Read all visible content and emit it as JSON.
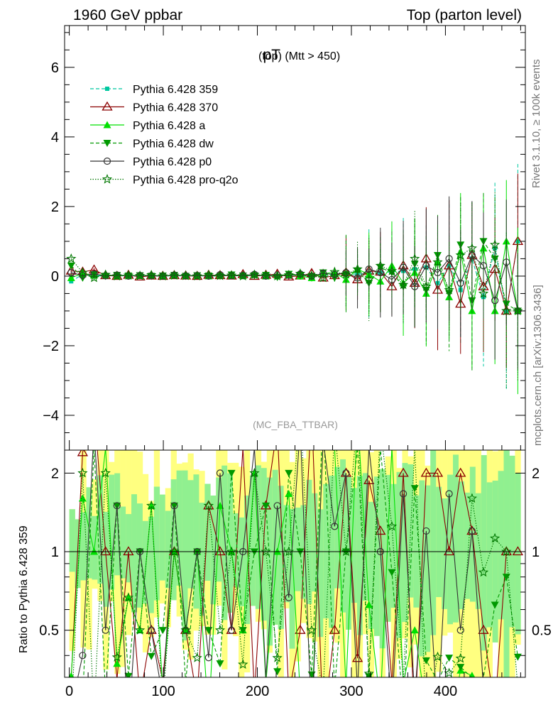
{
  "header": {
    "left": "1960 GeV ppbar",
    "right": "Top (parton level)"
  },
  "title": {
    "main": "pT",
    "sub": "(top) (Mtt > 450)"
  },
  "watermark": "(MC_FBA_TTBAR)",
  "side_labels": {
    "rivet": "Rivet 3.1.10, ≥ 100k events",
    "mcplots": "mcplots.cern.ch [arXiv:1306.3436]"
  },
  "ratio_ylabel": "Ratio to Pythia 6.428 359",
  "colors": {
    "359": "#00c8a0",
    "370": "#8b0000",
    "a": "#00e000",
    "dw": "#009900",
    "p0": "#333333",
    "pro": "#007700",
    "band_yellow": "#ffff80",
    "band_green": "#90f090"
  },
  "chart_data": {
    "type": "line",
    "main": {
      "xlim": [
        -5,
        485
      ],
      "ylim": [
        -5,
        7.2
      ],
      "yticks": [
        -4,
        -2,
        0,
        2,
        4,
        6
      ],
      "ytick_labels": [
        "−4",
        "−2",
        "0",
        "2",
        "4",
        "6"
      ]
    },
    "ratio": {
      "ylim": [
        0.33,
        2.45
      ],
      "yticks": [
        0.5,
        1,
        2
      ],
      "ytick_labels": [
        "0.5",
        "1",
        "2"
      ],
      "xticks": [
        0,
        100,
        200,
        300,
        400
      ],
      "xtick_labels": [
        "0",
        "100",
        "200",
        "300",
        "400"
      ]
    },
    "series": [
      {
        "name": "Pythia 6.428 359",
        "key": "359",
        "style": "dashed",
        "marker": "square",
        "values": [
          -0.15,
          0.05,
          0.0,
          0.02,
          0.01,
          0.03,
          0.0,
          0.02,
          0.01,
          0.0,
          0.02,
          0.01,
          0.0,
          0.01,
          0.02,
          0.0,
          0.01,
          0.02,
          0.0,
          0.03,
          0.01,
          0.02,
          0.03,
          0.04,
          0.05,
          0.06,
          0.08,
          0.1,
          0.12,
          0.15,
          0.2,
          0.25,
          -0.2,
          0.3,
          -0.4,
          0.5,
          -0.6,
          0.8,
          -1.0,
          1.0
        ]
      },
      {
        "name": "Pythia 6.428 370",
        "key": "370",
        "style": "solid",
        "marker": "open-triangle",
        "values": [
          0.15,
          0.12,
          0.18,
          0.02,
          0.0,
          0.03,
          -0.02,
          0.01,
          0.0,
          0.02,
          0.01,
          0.0,
          0.03,
          0.02,
          0.01,
          0.05,
          0.0,
          0.03,
          0.06,
          -0.02,
          0.01,
          0.08,
          -0.05,
          0.02,
          0.1,
          -0.1,
          0.15,
          0.12,
          -0.3,
          0.3,
          -0.2,
          0.5,
          -0.4,
          0.3,
          -0.8,
          0.6,
          -0.3,
          0.2,
          -1.0,
          1.0
        ]
      },
      {
        "name": "Pythia 6.428 a",
        "key": "a",
        "style": "solid",
        "marker": "triangle",
        "values": [
          -0.05,
          0.08,
          0.02,
          0.05,
          0.0,
          0.02,
          0.01,
          0.03,
          0.0,
          0.02,
          0.01,
          0.02,
          0.0,
          0.03,
          0.02,
          0.01,
          0.04,
          0.0,
          0.02,
          0.05,
          0.0,
          -0.05,
          0.08,
          0.1,
          -0.1,
          0.2,
          0.05,
          -0.15,
          0.3,
          -0.2,
          0.1,
          -0.5,
          0.4,
          -0.6,
          0.7,
          -1.0,
          0.8,
          -1.0,
          1.0,
          -1.0
        ]
      },
      {
        "name": "Pythia 6.428 dw",
        "key": "dw",
        "style": "dashed",
        "marker": "inverted-triangle",
        "values": [
          0.3,
          -0.05,
          0.05,
          0.0,
          0.03,
          0.01,
          0.02,
          0.0,
          0.01,
          0.03,
          0.0,
          0.02,
          0.01,
          0.0,
          0.04,
          0.01,
          0.02,
          0.03,
          -0.03,
          0.06,
          0.02,
          0.0,
          0.1,
          -0.05,
          0.05,
          0.15,
          -0.2,
          0.25,
          0.1,
          -0.3,
          0.35,
          -0.4,
          0.6,
          -0.5,
          0.9,
          -0.7,
          1.0,
          0.5,
          -0.8,
          -1.0
        ]
      },
      {
        "name": "Pythia 6.428 p0",
        "key": "p0",
        "style": "solid",
        "marker": "open-circle",
        "values": [
          0.1,
          0.02,
          0.06,
          0.01,
          0.03,
          0.0,
          0.02,
          0.01,
          0.0,
          0.03,
          0.01,
          0.02,
          0.0,
          0.04,
          0.01,
          0.02,
          0.05,
          0.0,
          0.03,
          0.02,
          0.06,
          0.0,
          0.08,
          0.05,
          0.1,
          -0.05,
          0.2,
          0.1,
          -0.1,
          0.25,
          -0.3,
          0.3,
          0.1,
          0.5,
          -0.2,
          0.6,
          0.3,
          -0.7,
          0.4,
          -1.0
        ]
      },
      {
        "name": "Pythia 6.428 pro-q2o",
        "key": "pro",
        "style": "dotted",
        "marker": "open-star",
        "values": [
          0.5,
          0.1,
          -0.05,
          0.04,
          0.0,
          0.02,
          0.01,
          0.03,
          0.0,
          0.02,
          0.01,
          0.0,
          0.03,
          0.01,
          0.02,
          0.0,
          0.04,
          0.02,
          0.0,
          0.03,
          0.07,
          0.01,
          -0.05,
          0.12,
          0.05,
          0.2,
          -0.1,
          0.3,
          0.15,
          -0.25,
          0.5,
          -0.3,
          0.4,
          -0.4,
          0.6,
          0.8,
          -0.5,
          0.9,
          -1.0,
          -1.0
        ]
      }
    ]
  }
}
